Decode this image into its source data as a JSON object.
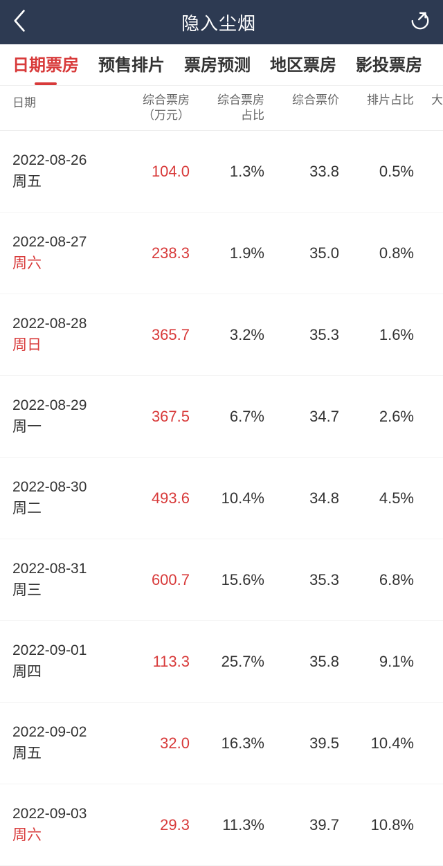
{
  "header": {
    "title": "隐入尘烟"
  },
  "tabs": [
    {
      "label": "日期票房",
      "active": true
    },
    {
      "label": "预售排片",
      "active": false
    },
    {
      "label": "票房预测",
      "active": false
    },
    {
      "label": "地区票房",
      "active": false
    },
    {
      "label": "影投票房",
      "active": false
    }
  ],
  "columns": [
    {
      "label": "日期"
    },
    {
      "label_line1": "综合票房",
      "label_line2": "（万元）"
    },
    {
      "label_line1": "综合票房",
      "label_line2": "占比"
    },
    {
      "label": "综合票价"
    },
    {
      "label": "排片占比"
    },
    {
      "label": "大"
    }
  ],
  "rows": [
    {
      "date": "2022-08-26",
      "day": "周五",
      "weekend": false,
      "box": "104.0",
      "box_pct": "1.3%",
      "price": "33.8",
      "sched_pct": "0.5%"
    },
    {
      "date": "2022-08-27",
      "day": "周六",
      "weekend": true,
      "box": "238.3",
      "box_pct": "1.9%",
      "price": "35.0",
      "sched_pct": "0.8%"
    },
    {
      "date": "2022-08-28",
      "day": "周日",
      "weekend": true,
      "box": "365.7",
      "box_pct": "3.2%",
      "price": "35.3",
      "sched_pct": "1.6%"
    },
    {
      "date": "2022-08-29",
      "day": "周一",
      "weekend": false,
      "box": "367.5",
      "box_pct": "6.7%",
      "price": "34.7",
      "sched_pct": "2.6%"
    },
    {
      "date": "2022-08-30",
      "day": "周二",
      "weekend": false,
      "box": "493.6",
      "box_pct": "10.4%",
      "price": "34.8",
      "sched_pct": "4.5%"
    },
    {
      "date": "2022-08-31",
      "day": "周三",
      "weekend": false,
      "box": "600.7",
      "box_pct": "15.6%",
      "price": "35.3",
      "sched_pct": "6.8%"
    },
    {
      "date": "2022-09-01",
      "day": "周四",
      "weekend": false,
      "box": "113.3",
      "box_pct": "25.7%",
      "price": "35.8",
      "sched_pct": "9.1%"
    },
    {
      "date": "2022-09-02",
      "day": "周五",
      "weekend": false,
      "box": "32.0",
      "box_pct": "16.3%",
      "price": "39.5",
      "sched_pct": "10.4%"
    },
    {
      "date": "2022-09-03",
      "day": "周六",
      "weekend": true,
      "box": "29.3",
      "box_pct": "11.3%",
      "price": "39.7",
      "sched_pct": "10.8%"
    }
  ],
  "colors": {
    "header_bg": "#2d3a52",
    "accent": "#d83a3a",
    "text": "#333333",
    "muted": "#666666"
  }
}
